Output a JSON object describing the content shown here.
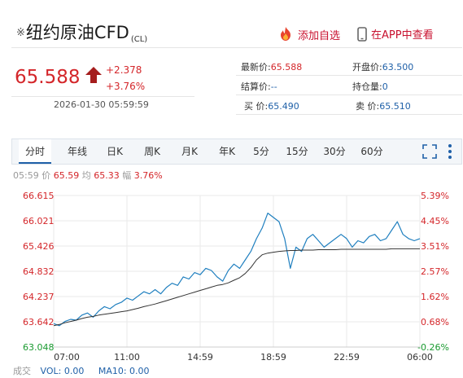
{
  "header": {
    "title_mark": "※",
    "title": "纽约原油CFD",
    "code": "(CL)",
    "add_watchlist": "添加自选",
    "open_app": "在APP中查看"
  },
  "quote": {
    "price": "65.588",
    "change": "+2.378",
    "change_pct": "+3.76%",
    "datetime": "2026-01-30 05:59:59",
    "latest_label": "最新价:",
    "latest_value": "65.588",
    "settle_label": "结算价:",
    "settle_value": "--",
    "bid_label": "买  价:",
    "bid_value": "65.490",
    "open_label": "开盘价:",
    "open_value": "63.500",
    "position_label": "持仓量:",
    "position_value": "0",
    "ask_label": "卖  价:",
    "ask_value": "65.510"
  },
  "tabs": [
    "分时",
    "年线",
    "日K",
    "周K",
    "月K",
    "年K",
    "5分",
    "15分",
    "30分",
    "60分"
  ],
  "active_tab": "分时",
  "info_bar": {
    "time": "05:59",
    "price_label": "价",
    "price": "65.59",
    "avg_label": "均",
    "avg": "65.33",
    "range_label": "幅",
    "range": "3.76%"
  },
  "footer": {
    "deal": "成交",
    "vol": "VOL: 0.00",
    "ma": "MA10: 0.00"
  },
  "colors": {
    "up": "#d4262a",
    "down": "#1a9a30",
    "line": "#1f7fbf",
    "avg": "#333333",
    "accent": "#1f60a8"
  },
  "chart_data": {
    "type": "line",
    "y_left_ticks": [
      "66.615",
      "66.021",
      "65.426",
      "64.832",
      "64.237",
      "63.642",
      "63.048"
    ],
    "y_right_ticks": [
      "5.39%",
      "4.45%",
      "3.51%",
      "2.57%",
      "1.62%",
      "0.68%",
      "-0.26%"
    ],
    "x_ticks": [
      "07:00",
      "11:00",
      "14:59",
      "18:59",
      "22:59",
      "06:00"
    ],
    "ylim": [
      63.048,
      66.615
    ],
    "series": [
      {
        "values": [
          63.6,
          63.55,
          63.65,
          63.7,
          63.68,
          63.8,
          63.85,
          63.75,
          63.9,
          64.0,
          63.95,
          64.05,
          64.1,
          64.2,
          64.15,
          64.25,
          64.35,
          64.3,
          64.4,
          64.3,
          64.45,
          64.55,
          64.5,
          64.7,
          64.65,
          64.8,
          64.75,
          64.9,
          64.85,
          64.7,
          64.6,
          64.85,
          65.0,
          64.9,
          65.1,
          65.3,
          65.6,
          65.85,
          66.2,
          66.1,
          66.0,
          65.6,
          64.9,
          65.4,
          65.3,
          65.6,
          65.7,
          65.55,
          65.4,
          65.5,
          65.6,
          65.7,
          65.6,
          65.4,
          65.55,
          65.5,
          65.65,
          65.7,
          65.55,
          65.6,
          65.8,
          66.0,
          65.7,
          65.6,
          65.55,
          65.6
        ]
      },
      {
        "values": [
          63.55,
          63.58,
          63.62,
          63.65,
          63.68,
          63.72,
          63.75,
          63.77,
          63.8,
          63.82,
          63.84,
          63.86,
          63.88,
          63.9,
          63.93,
          63.96,
          64.0,
          64.03,
          64.06,
          64.1,
          64.14,
          64.18,
          64.22,
          64.26,
          64.3,
          64.34,
          64.38,
          64.42,
          64.46,
          64.5,
          64.52,
          64.56,
          64.62,
          64.68,
          64.78,
          64.92,
          65.1,
          65.22,
          65.26,
          65.28,
          65.3,
          65.31,
          65.32,
          65.32,
          65.33,
          65.33,
          65.33,
          65.34,
          65.34,
          65.34,
          65.34,
          65.35,
          65.35,
          65.35,
          65.35,
          65.35,
          65.35,
          65.35,
          65.35,
          65.35,
          65.36,
          65.36,
          65.36,
          65.36,
          65.36,
          65.36
        ]
      }
    ]
  }
}
